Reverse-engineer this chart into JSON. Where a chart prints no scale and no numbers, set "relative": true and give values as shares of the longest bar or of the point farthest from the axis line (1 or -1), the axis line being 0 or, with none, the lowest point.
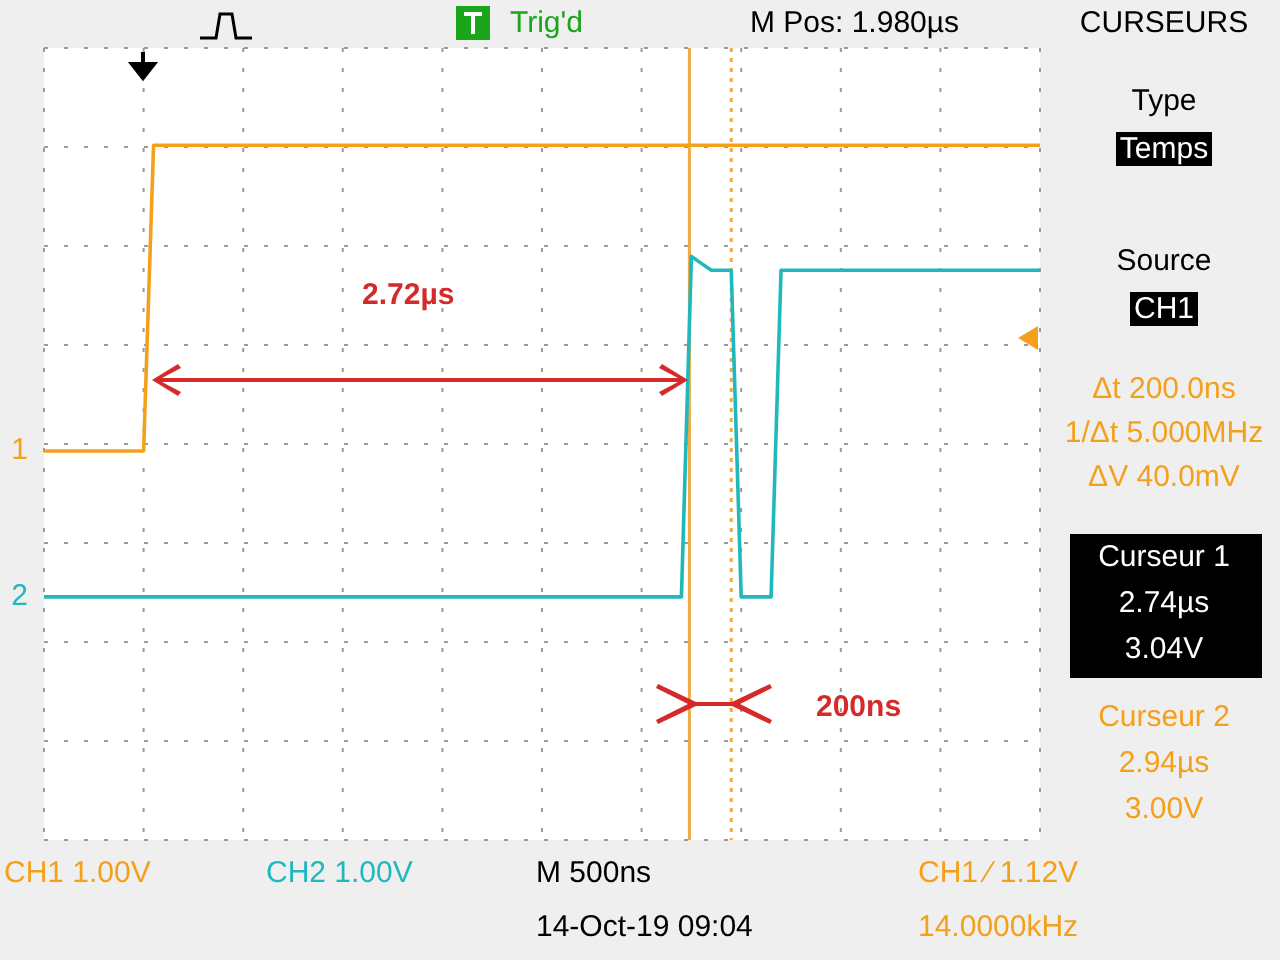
{
  "chart_data": {
    "type": "line",
    "relative": true,
    "categories": [
      null,
      null,
      null,
      null,
      null,
      null,
      null,
      null,
      null,
      null,
      null,
      null,
      null,
      null,
      null,
      null,
      null,
      null,
      null,
      null,
      null,
      null,
      null,
      null,
      null,
      null,
      null,
      null,
      null,
      null,
      null,
      null,
      null,
      null,
      null,
      null,
      null,
      null,
      null,
      null,
      null,
      null,
      null,
      null,
      null,
      null,
      null,
      null,
      null,
      null,
      null,
      null,
      null,
      null,
      null,
      null,
      null,
      null,
      null,
      null,
      null,
      null,
      null,
      null,
      null,
      null,
      null,
      null,
      null,
      null,
      null,
      null,
      null,
      null,
      null,
      null,
      null,
      null,
      null,
      null,
      null,
      null,
      null,
      null,
      null,
      null,
      null,
      null,
      null,
      null,
      null,
      null,
      null,
      null,
      null,
      null,
      null,
      null,
      null,
      null,
      null
    ],
    "series": [
      {
        "name": "1",
        "color": "#f5a01a",
        "values": [
          0.56,
          0.56,
          0.56,
          0.56,
          0.56,
          0.56,
          0.56,
          0.56,
          0.56,
          0.56,
          0.56,
          1,
          1,
          1,
          1,
          1,
          1,
          1,
          1,
          1,
          1,
          1,
          1,
          1,
          1,
          1,
          1,
          1,
          1,
          1,
          1,
          1,
          1,
          1,
          1,
          1,
          1,
          1,
          1,
          1,
          1,
          1,
          1,
          1,
          1,
          1,
          1,
          1,
          1,
          1,
          1,
          1,
          1,
          1,
          1,
          1,
          1,
          1,
          1,
          1,
          1,
          1,
          1,
          1,
          1,
          1,
          1,
          1,
          1,
          1,
          1,
          1,
          1,
          1,
          1,
          1,
          1,
          1,
          1,
          1,
          1,
          1,
          1,
          1,
          1,
          1,
          1,
          1,
          1,
          1,
          1,
          1,
          1,
          1,
          1,
          1,
          1,
          1,
          1,
          1,
          1
        ]
      },
      {
        "name": "2",
        "color": "#20b8bd",
        "values": [
          0.35,
          0.35,
          0.35,
          0.35,
          0.35,
          0.35,
          0.35,
          0.35,
          0.35,
          0.35,
          0.35,
          0.35,
          0.35,
          0.35,
          0.35,
          0.35,
          0.35,
          0.35,
          0.35,
          0.35,
          0.35,
          0.35,
          0.35,
          0.35,
          0.35,
          0.35,
          0.35,
          0.35,
          0.35,
          0.35,
          0.35,
          0.35,
          0.35,
          0.35,
          0.35,
          0.35,
          0.35,
          0.35,
          0.35,
          0.35,
          0.35,
          0.35,
          0.35,
          0.35,
          0.35,
          0.35,
          0.35,
          0.35,
          0.35,
          0.35,
          0.35,
          0.35,
          0.35,
          0.35,
          0.35,
          0.35,
          0.35,
          0.35,
          0.35,
          0.35,
          0.35,
          0.35,
          0.35,
          0.35,
          0.35,
          0.84,
          0.83,
          0.82,
          0.82,
          0.82,
          0.35,
          0.35,
          0.35,
          0.35,
          0.82,
          0.82,
          0.82,
          0.82,
          0.82,
          0.82,
          0.82,
          0.82,
          0.82,
          0.82,
          0.82,
          0.82,
          0.82,
          0.82,
          0.82,
          0.82,
          0.82,
          0.82,
          0.82,
          0.82,
          0.82,
          0.82,
          0.82,
          0.82,
          0.82,
          0.82,
          0.82
        ]
      }
    ],
    "grid": true,
    "tick_labels": false,
    "marker": "none",
    "line_style": "solid",
    "annotations": [
      "Trig'd",
      "M Pos: 1.980µs",
      "CURSEURS",
      "Type",
      "Temps",
      "Source",
      "CH1",
      "Δt 200.0ns",
      "1/Δt 5.000MHz",
      "ΔV 40.0mV",
      "Curseur 1",
      "2.74µs",
      "3.04V",
      "Curseur 2",
      "2.94µs",
      "3.00V",
      "CH1  1.00V",
      "CH2  1.00V",
      "M 500ns",
      "CH1 ⁄ 1.12V",
      "14-Oct-19 09:04",
      "14.0000kHz",
      "2.72µs",
      "200ns"
    ]
  }
}
